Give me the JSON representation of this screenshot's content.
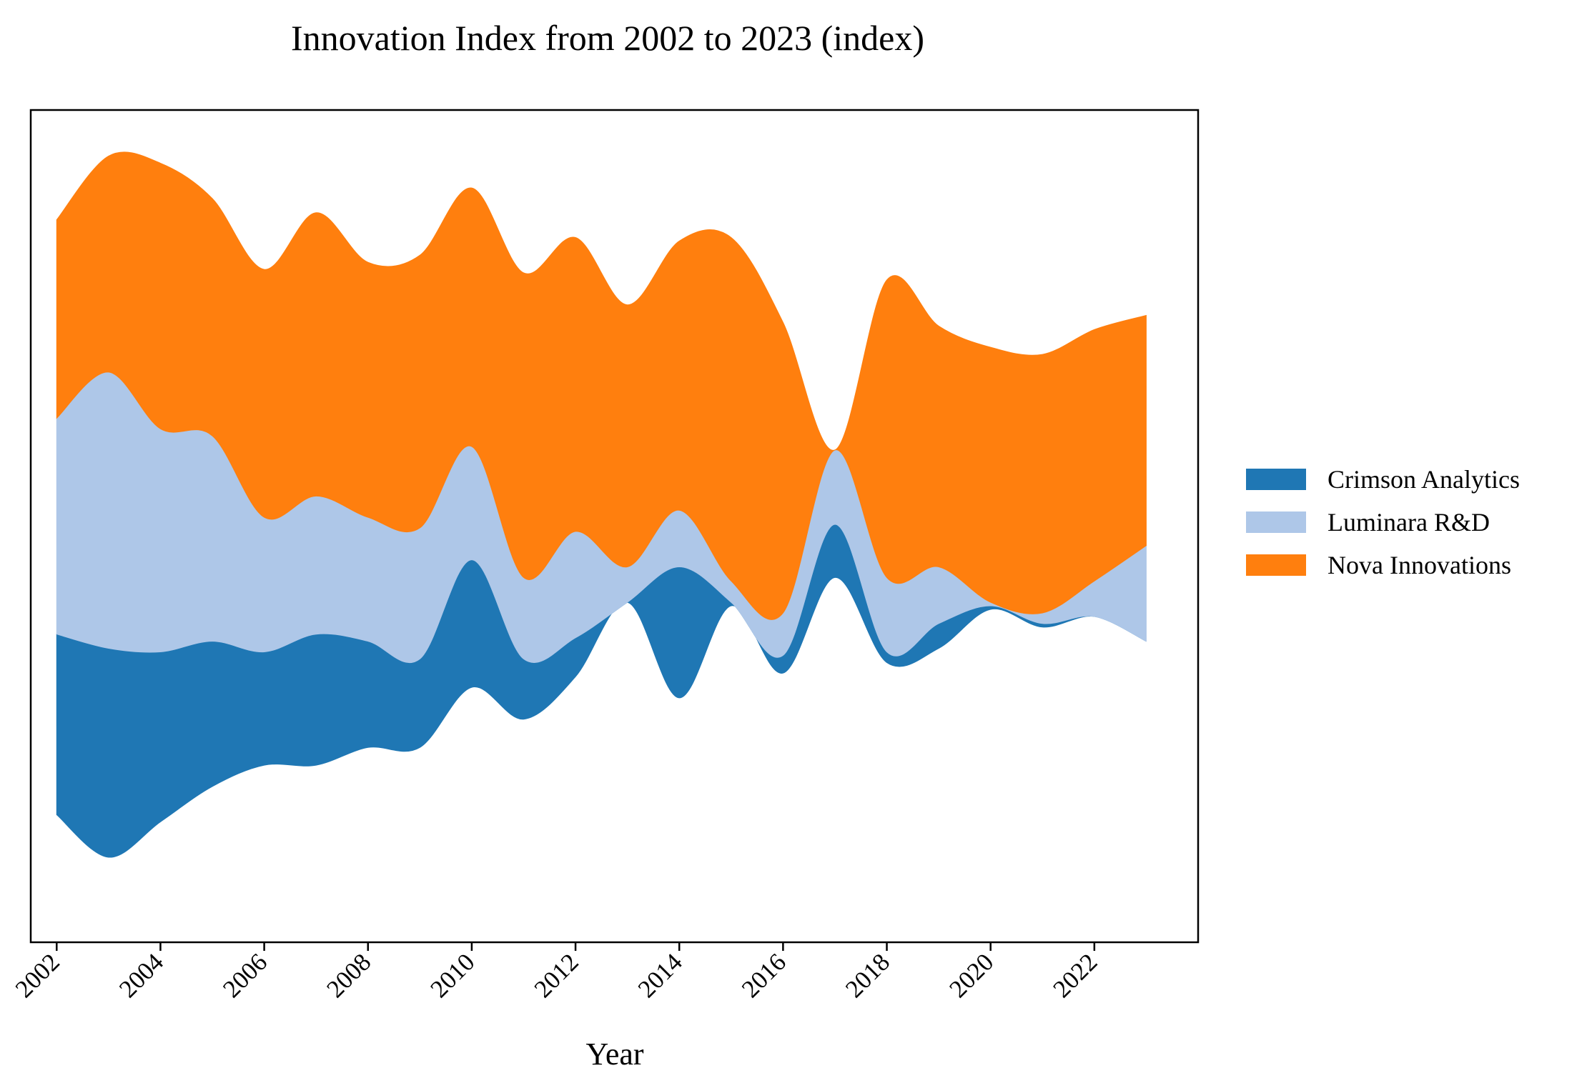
{
  "chart_data": {
    "type": "area",
    "subtype": "streamgraph",
    "title": "Innovation Index from 2002 to 2023 (index)",
    "xlabel": "Year",
    "ylabel": "",
    "x": [
      2002,
      2003,
      2004,
      2005,
      2006,
      2007,
      2008,
      2009,
      2010,
      2011,
      2012,
      2013,
      2014,
      2015,
      2016,
      2017,
      2018,
      2019,
      2020,
      2021,
      2022,
      2023
    ],
    "xticks": [
      "2002",
      "2004",
      "2006",
      "2008",
      "2010",
      "2012",
      "2014",
      "2016",
      "2018",
      "2020",
      "2022"
    ],
    "baseline": [
      -53.0,
      -65.0,
      -55.0,
      -45.0,
      -39.0,
      -39.0,
      -34.0,
      -34.0,
      -17.0,
      -26.0,
      -14.0,
      7.0,
      -20.0,
      6.0,
      -13.0,
      14.0,
      -10.0,
      -6.0,
      5.0,
      0.0,
      3.0,
      -4.0
    ],
    "series": [
      {
        "name": "Crimson Analytics",
        "color": "#1f77b4",
        "values": [
          51,
          59,
          48,
          41,
          32,
          37,
          30,
          25,
          36,
          17,
          11,
          0,
          37,
          1,
          5,
          15,
          3,
          7,
          1,
          1,
          0,
          0
        ]
      },
      {
        "name": "Luminara R&D",
        "color": "#aec7e8",
        "values": [
          61,
          78,
          63,
          58,
          38,
          39,
          35,
          37,
          32,
          23,
          30,
          10,
          16,
          6,
          12,
          21,
          21,
          16,
          1,
          3,
          10,
          27
        ]
      },
      {
        "name": "Nova Innovations",
        "color": "#ff7f0e",
        "values": [
          56,
          61,
          75,
          67,
          70,
          80,
          72,
          77,
          73,
          86,
          83,
          74,
          76,
          97,
          82,
          0,
          84,
          68,
          72,
          73,
          71,
          65
        ]
      }
    ],
    "legend": {
      "position": "right",
      "entries": [
        "Crimson Analytics",
        "Luminara R&D",
        "Nova Innovations"
      ]
    },
    "xlim": [
      2001.5,
      2024.0
    ],
    "ylim": [
      -89,
      146
    ],
    "grid": false
  }
}
